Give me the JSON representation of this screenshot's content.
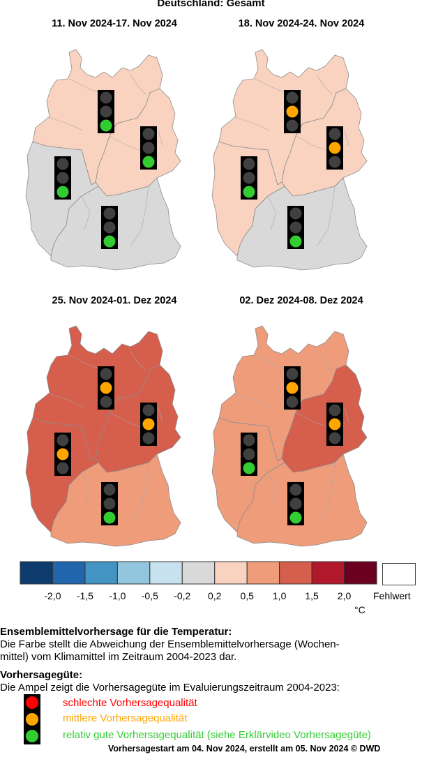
{
  "title": "Deutschland: Gesamt",
  "panels": [
    {
      "title": "11. Nov 2024-17. Nov 2024",
      "regions": {
        "north": {
          "category": "0,2 - 0,5",
          "color": "#f9d3c0",
          "traffic_light": "green"
        },
        "east": {
          "category": "0,2 - 0,5",
          "color": "#f9d3c0",
          "traffic_light": "green"
        },
        "west": {
          "category": "-0,2 - 0,2",
          "color": "#d9d9d9",
          "traffic_light": "green"
        },
        "south": {
          "category": "-0,2 - 0,2",
          "color": "#d9d9d9",
          "traffic_light": "green"
        }
      }
    },
    {
      "title": "18. Nov 2024-24. Nov 2024",
      "regions": {
        "north": {
          "category": "0,2 - 0,5",
          "color": "#f9d3c0",
          "traffic_light": "orange"
        },
        "east": {
          "category": "0,2 - 0,5",
          "color": "#f9d3c0",
          "traffic_light": "orange"
        },
        "west": {
          "category": "0,2 - 0,5",
          "color": "#f9d3c0",
          "traffic_light": "green"
        },
        "south": {
          "category": "-0,2 - 0,2",
          "color": "#d9d9d9",
          "traffic_light": "green"
        }
      }
    },
    {
      "title": "25. Nov 2024-01. Dez 2024",
      "regions": {
        "north": {
          "category": "1,0 - 1,5",
          "color": "#d55e4d",
          "traffic_light": "orange"
        },
        "east": {
          "category": "1,0 - 1,5",
          "color": "#d55e4d",
          "traffic_light": "orange"
        },
        "west": {
          "category": "1,0 - 1,5",
          "color": "#d55e4d",
          "traffic_light": "orange"
        },
        "south": {
          "category": "0,5 - 1,0",
          "color": "#ef9c7b",
          "traffic_light": "green"
        }
      }
    },
    {
      "title": "02. Dez 2024-08. Dez 2024",
      "regions": {
        "north": {
          "category": "0,5 - 1,0",
          "color": "#ef9c7b",
          "traffic_light": "orange"
        },
        "east": {
          "category": "1,0 - 1,5",
          "color": "#d55e4d",
          "traffic_light": "orange"
        },
        "west": {
          "category": "0,5 - 1,0",
          "color": "#ef9c7b",
          "traffic_light": "green"
        },
        "south": {
          "category": "0,5 - 1,0",
          "color": "#ef9c7b",
          "traffic_light": "green"
        }
      }
    }
  ],
  "colorbar": {
    "colors": [
      "#0d3b6e",
      "#2166ac",
      "#4393c3",
      "#92c5de",
      "#c8e1ee",
      "#d9d9d9",
      "#f9d3c0",
      "#ef9c7b",
      "#d55e4d",
      "#b2182b",
      "#6b0021"
    ],
    "tick_labels": [
      "-2,0",
      "-1,5",
      "-1,0",
      "-0,5",
      "-0,2",
      "0,2",
      "0,5",
      "1,0",
      "1,5",
      "2,0"
    ],
    "unit": "°C",
    "missing_label": "Fehlwert",
    "missing_color": "#ffffff"
  },
  "traffic_light_colors": {
    "red": "#ff0000",
    "orange": "#ffa500",
    "green": "#33cc33",
    "off": "#404040"
  },
  "description": {
    "heading1": "Ensemblemittelvorhersage für die Temperatur:",
    "text1_line1": "Die Farbe stellt die Abweichung der Ensemblemittelvorhersage (Wochen-",
    "text1_line2": "mittel) vom Klimamittel im Zeitraum 2004-2023 dar.",
    "heading2": "Vorhersagegüte:",
    "text2": "Die Ampel zeigt die Vorhersagegüte im Evaluierungszeitraum 2004-2023:",
    "legend": [
      {
        "label": "schlechte Vorhersagequalität",
        "color": "#ff0000",
        "light": "red"
      },
      {
        "label": "mittlere Vorhersagequalität",
        "color": "#ffa500",
        "light": "orange"
      },
      {
        "label": "relativ gute Vorhersagequalität (siehe Erklärvideo Vorhersagegüte)",
        "color": "#33cc33",
        "light": "green"
      }
    ]
  },
  "footer": "Vorhersagestart am 04. Nov 2024, erstellt am 05. Nov 2024 © DWD"
}
